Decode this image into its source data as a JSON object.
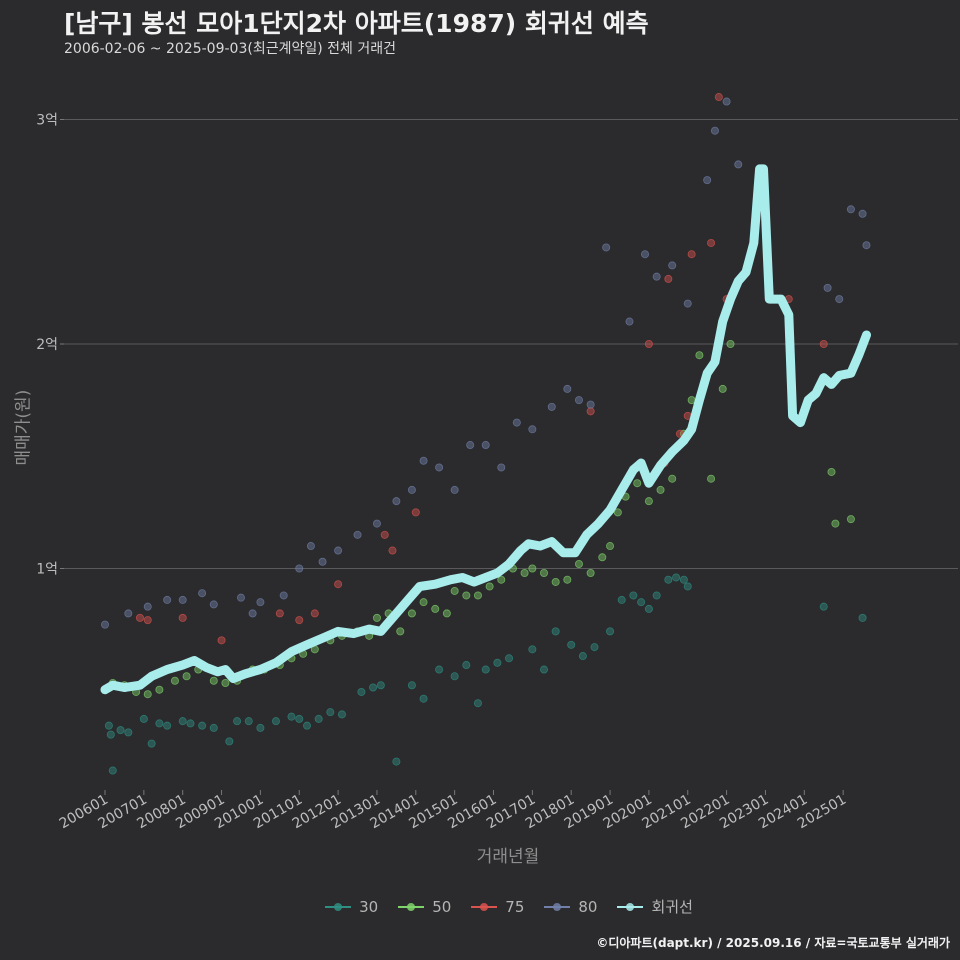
{
  "title": "[남구] 봉선 모아1단지2차 아파트(1987) 회귀선 예측",
  "subtitle": "2006-02-06 ~ 2025-09-03(최근계약일) 전체 거래건",
  "footer": "©디아파트(dapt.kr) / 2025.09.16 / 자료=국토교통부 실거래가",
  "chart_data": {
    "type": "scatter",
    "title": "[남구] 봉선 모아1단지2차 아파트(1987) 회귀선 예측",
    "xlabel": "거래년월",
    "ylabel": "매매가(원)",
    "xlim": [
      2006.0,
      2025.8
    ],
    "ylim": [
      0.0,
      3.1
    ],
    "y_unit": "억",
    "y_ticks": [
      {
        "value": 1,
        "label": "1억"
      },
      {
        "value": 2,
        "label": "2억"
      },
      {
        "value": 3,
        "label": "3억"
      }
    ],
    "x_ticks": [
      {
        "value": 2006.0,
        "label": "200601"
      },
      {
        "value": 2007.0,
        "label": "200701"
      },
      {
        "value": 2008.0,
        "label": "200801"
      },
      {
        "value": 2009.0,
        "label": "200901"
      },
      {
        "value": 2010.0,
        "label": "201001"
      },
      {
        "value": 2011.0,
        "label": "201101"
      },
      {
        "value": 2012.0,
        "label": "201201"
      },
      {
        "value": 2013.0,
        "label": "201301"
      },
      {
        "value": 2014.0,
        "label": "201401"
      },
      {
        "value": 2015.0,
        "label": "201501"
      },
      {
        "value": 2016.0,
        "label": "201601"
      },
      {
        "value": 2017.0,
        "label": "201701"
      },
      {
        "value": 2018.0,
        "label": "201801"
      },
      {
        "value": 2019.0,
        "label": "201901"
      },
      {
        "value": 2020.0,
        "label": "202001"
      },
      {
        "value": 2021.0,
        "label": "202101"
      },
      {
        "value": 2022.0,
        "label": "202201"
      },
      {
        "value": 2023.0,
        "label": "202301"
      },
      {
        "value": 2024.0,
        "label": "202401"
      },
      {
        "value": 2025.0,
        "label": "202501"
      }
    ],
    "legend": [
      {
        "name": "30",
        "color": "#2f8f83",
        "kind": "point"
      },
      {
        "name": "50",
        "color": "#7fd36b",
        "kind": "point"
      },
      {
        "name": "75",
        "color": "#d9534f",
        "kind": "point"
      },
      {
        "name": "80",
        "color": "#7180a8",
        "kind": "point"
      },
      {
        "name": "회귀선",
        "color": "#a8ecec",
        "kind": "line"
      }
    ],
    "series": [
      {
        "name": "30",
        "color": "#2f8f83",
        "points": [
          [
            2006.1,
            0.3
          ],
          [
            2006.15,
            0.26
          ],
          [
            2006.2,
            0.1
          ],
          [
            2006.4,
            0.28
          ],
          [
            2006.6,
            0.27
          ],
          [
            2007.0,
            0.33
          ],
          [
            2007.2,
            0.22
          ],
          [
            2007.4,
            0.31
          ],
          [
            2007.6,
            0.3
          ],
          [
            2008.0,
            0.32
          ],
          [
            2008.2,
            0.31
          ],
          [
            2008.5,
            0.3
          ],
          [
            2008.8,
            0.29
          ],
          [
            2009.2,
            0.23
          ],
          [
            2009.4,
            0.32
          ],
          [
            2009.7,
            0.32
          ],
          [
            2010.0,
            0.29
          ],
          [
            2010.4,
            0.32
          ],
          [
            2010.8,
            0.34
          ],
          [
            2011.0,
            0.33
          ],
          [
            2011.2,
            0.3
          ],
          [
            2011.5,
            0.33
          ],
          [
            2011.8,
            0.36
          ],
          [
            2012.1,
            0.35
          ],
          [
            2012.6,
            0.45
          ],
          [
            2012.9,
            0.47
          ],
          [
            2013.1,
            0.48
          ],
          [
            2013.5,
            0.14
          ],
          [
            2013.9,
            0.48
          ],
          [
            2014.2,
            0.42
          ],
          [
            2014.6,
            0.55
          ],
          [
            2015.0,
            0.52
          ],
          [
            2015.3,
            0.57
          ],
          [
            2015.6,
            0.4
          ],
          [
            2015.8,
            0.55
          ],
          [
            2016.1,
            0.58
          ],
          [
            2016.4,
            0.6
          ],
          [
            2017.0,
            0.64
          ],
          [
            2017.3,
            0.55
          ],
          [
            2017.6,
            0.72
          ],
          [
            2018.0,
            0.66
          ],
          [
            2018.3,
            0.61
          ],
          [
            2018.6,
            0.65
          ],
          [
            2019.0,
            0.72
          ],
          [
            2019.3,
            0.86
          ],
          [
            2019.6,
            0.88
          ],
          [
            2019.8,
            0.85
          ],
          [
            2020.0,
            0.82
          ],
          [
            2020.2,
            0.88
          ],
          [
            2020.5,
            0.95
          ],
          [
            2020.7,
            0.96
          ],
          [
            2020.9,
            0.95
          ],
          [
            2021.0,
            0.92
          ],
          [
            2024.5,
            0.83
          ],
          [
            2025.5,
            0.78
          ]
        ]
      },
      {
        "name": "50",
        "color": "#7fd36b",
        "points": [
          [
            2006.2,
            0.49
          ],
          [
            2006.5,
            0.48
          ],
          [
            2006.8,
            0.45
          ],
          [
            2007.1,
            0.44
          ],
          [
            2007.4,
            0.46
          ],
          [
            2007.8,
            0.5
          ],
          [
            2008.1,
            0.52
          ],
          [
            2008.4,
            0.55
          ],
          [
            2008.8,
            0.5
          ],
          [
            2009.1,
            0.49
          ],
          [
            2009.4,
            0.5
          ],
          [
            2009.8,
            0.55
          ],
          [
            2010.1,
            0.55
          ],
          [
            2010.5,
            0.57
          ],
          [
            2010.8,
            0.6
          ],
          [
            2011.1,
            0.62
          ],
          [
            2011.4,
            0.64
          ],
          [
            2011.8,
            0.68
          ],
          [
            2012.1,
            0.7
          ],
          [
            2012.5,
            0.72
          ],
          [
            2012.8,
            0.7
          ],
          [
            2013.0,
            0.78
          ],
          [
            2013.3,
            0.8
          ],
          [
            2013.6,
            0.72
          ],
          [
            2013.9,
            0.8
          ],
          [
            2014.2,
            0.85
          ],
          [
            2014.5,
            0.82
          ],
          [
            2014.8,
            0.8
          ],
          [
            2015.0,
            0.9
          ],
          [
            2015.3,
            0.88
          ],
          [
            2015.6,
            0.88
          ],
          [
            2015.9,
            0.92
          ],
          [
            2016.2,
            0.95
          ],
          [
            2016.5,
            1.0
          ],
          [
            2016.8,
            0.98
          ],
          [
            2017.0,
            1.0
          ],
          [
            2017.3,
            0.98
          ],
          [
            2017.6,
            0.94
          ],
          [
            2017.9,
            0.95
          ],
          [
            2018.2,
            1.02
          ],
          [
            2018.5,
            0.98
          ],
          [
            2018.8,
            1.05
          ],
          [
            2019.0,
            1.1
          ],
          [
            2019.2,
            1.25
          ],
          [
            2019.4,
            1.32
          ],
          [
            2019.7,
            1.38
          ],
          [
            2020.0,
            1.3
          ],
          [
            2020.3,
            1.35
          ],
          [
            2020.6,
            1.4
          ],
          [
            2020.9,
            1.6
          ],
          [
            2021.1,
            1.75
          ],
          [
            2021.3,
            1.95
          ],
          [
            2021.6,
            1.4
          ],
          [
            2021.9,
            1.8
          ],
          [
            2022.1,
            2.0
          ],
          [
            2024.7,
            1.43
          ],
          [
            2024.8,
            1.2
          ],
          [
            2025.2,
            1.22
          ]
        ]
      },
      {
        "name": "75",
        "color": "#d9534f",
        "points": [
          [
            2006.9,
            0.78
          ],
          [
            2007.1,
            0.77
          ],
          [
            2008.0,
            0.78
          ],
          [
            2009.0,
            0.68
          ],
          [
            2010.5,
            0.8
          ],
          [
            2011.0,
            0.77
          ],
          [
            2011.4,
            0.8
          ],
          [
            2012.0,
            0.93
          ],
          [
            2013.2,
            1.15
          ],
          [
            2013.4,
            1.08
          ],
          [
            2014.0,
            1.25
          ],
          [
            2018.5,
            1.7
          ],
          [
            2020.0,
            2.0
          ],
          [
            2020.4,
            1.47
          ],
          [
            2020.5,
            2.29
          ],
          [
            2020.8,
            1.6
          ],
          [
            2021.0,
            1.68
          ],
          [
            2021.1,
            2.4
          ],
          [
            2021.6,
            2.45
          ],
          [
            2022.0,
            2.2
          ],
          [
            2023.6,
            2.2
          ],
          [
            2024.5,
            2.0
          ],
          [
            2021.8,
            3.1
          ]
        ]
      },
      {
        "name": "80",
        "color": "#7180a8",
        "points": [
          [
            2006.0,
            0.75
          ],
          [
            2006.6,
            0.8
          ],
          [
            2007.1,
            0.83
          ],
          [
            2007.6,
            0.86
          ],
          [
            2008.0,
            0.86
          ],
          [
            2008.5,
            0.89
          ],
          [
            2008.8,
            0.84
          ],
          [
            2009.5,
            0.87
          ],
          [
            2009.8,
            0.8
          ],
          [
            2010.0,
            0.85
          ],
          [
            2010.6,
            0.88
          ],
          [
            2011.0,
            1.0
          ],
          [
            2011.3,
            1.1
          ],
          [
            2011.6,
            1.03
          ],
          [
            2012.0,
            1.08
          ],
          [
            2012.5,
            1.15
          ],
          [
            2013.0,
            1.2
          ],
          [
            2013.5,
            1.3
          ],
          [
            2013.9,
            1.35
          ],
          [
            2014.2,
            1.48
          ],
          [
            2014.6,
            1.45
          ],
          [
            2015.0,
            1.35
          ],
          [
            2015.4,
            1.55
          ],
          [
            2015.8,
            1.55
          ],
          [
            2016.2,
            1.45
          ],
          [
            2016.6,
            1.65
          ],
          [
            2017.0,
            1.62
          ],
          [
            2017.5,
            1.72
          ],
          [
            2017.9,
            1.8
          ],
          [
            2018.2,
            1.75
          ],
          [
            2018.5,
            1.73
          ],
          [
            2018.9,
            2.43
          ],
          [
            2019.5,
            2.1
          ],
          [
            2019.9,
            2.4
          ],
          [
            2020.2,
            2.3
          ],
          [
            2020.6,
            2.35
          ],
          [
            2021.0,
            2.18
          ],
          [
            2021.5,
            2.73
          ],
          [
            2021.7,
            2.95
          ],
          [
            2022.0,
            3.08
          ],
          [
            2022.3,
            2.8
          ],
          [
            2024.6,
            2.25
          ],
          [
            2024.9,
            2.2
          ],
          [
            2025.2,
            2.6
          ],
          [
            2025.5,
            2.58
          ],
          [
            2025.6,
            2.44
          ]
        ]
      }
    ],
    "regression": {
      "name": "회귀선",
      "color": "#a8ecec",
      "points": [
        [
          2006.0,
          0.46
        ],
        [
          2006.2,
          0.48
        ],
        [
          2006.5,
          0.47
        ],
        [
          2006.9,
          0.48
        ],
        [
          2007.2,
          0.52
        ],
        [
          2007.6,
          0.55
        ],
        [
          2008.0,
          0.57
        ],
        [
          2008.3,
          0.59
        ],
        [
          2008.6,
          0.56
        ],
        [
          2008.9,
          0.54
        ],
        [
          2009.1,
          0.55
        ],
        [
          2009.3,
          0.51
        ],
        [
          2009.6,
          0.53
        ],
        [
          2010.0,
          0.55
        ],
        [
          2010.4,
          0.58
        ],
        [
          2010.8,
          0.63
        ],
        [
          2011.2,
          0.66
        ],
        [
          2011.6,
          0.69
        ],
        [
          2012.0,
          0.72
        ],
        [
          2012.4,
          0.71
        ],
        [
          2012.8,
          0.73
        ],
        [
          2013.1,
          0.72
        ],
        [
          2013.4,
          0.78
        ],
        [
          2013.8,
          0.86
        ],
        [
          2014.1,
          0.92
        ],
        [
          2014.5,
          0.93
        ],
        [
          2014.9,
          0.95
        ],
        [
          2015.2,
          0.96
        ],
        [
          2015.5,
          0.94
        ],
        [
          2015.8,
          0.96
        ],
        [
          2016.1,
          0.98
        ],
        [
          2016.4,
          1.02
        ],
        [
          2016.7,
          1.08
        ],
        [
          2016.9,
          1.11
        ],
        [
          2017.2,
          1.1
        ],
        [
          2017.5,
          1.12
        ],
        [
          2017.8,
          1.07
        ],
        [
          2018.1,
          1.07
        ],
        [
          2018.4,
          1.15
        ],
        [
          2018.7,
          1.2
        ],
        [
          2019.0,
          1.26
        ],
        [
          2019.3,
          1.35
        ],
        [
          2019.6,
          1.44
        ],
        [
          2019.8,
          1.47
        ],
        [
          2020.0,
          1.38
        ],
        [
          2020.3,
          1.46
        ],
        [
          2020.6,
          1.52
        ],
        [
          2020.9,
          1.57
        ],
        [
          2021.1,
          1.62
        ],
        [
          2021.3,
          1.75
        ],
        [
          2021.5,
          1.87
        ],
        [
          2021.7,
          1.92
        ],
        [
          2021.9,
          2.1
        ],
        [
          2022.1,
          2.2
        ],
        [
          2022.3,
          2.28
        ],
        [
          2022.5,
          2.32
        ],
        [
          2022.7,
          2.45
        ],
        [
          2022.85,
          2.78
        ],
        [
          2022.95,
          2.78
        ],
        [
          2023.1,
          2.2
        ],
        [
          2023.4,
          2.2
        ],
        [
          2023.6,
          2.13
        ],
        [
          2023.7,
          1.68
        ],
        [
          2023.9,
          1.65
        ],
        [
          2024.1,
          1.75
        ],
        [
          2024.3,
          1.78
        ],
        [
          2024.5,
          1.85
        ],
        [
          2024.7,
          1.82
        ],
        [
          2024.9,
          1.86
        ],
        [
          2025.2,
          1.87
        ],
        [
          2025.4,
          1.95
        ],
        [
          2025.6,
          2.04
        ]
      ]
    }
  }
}
